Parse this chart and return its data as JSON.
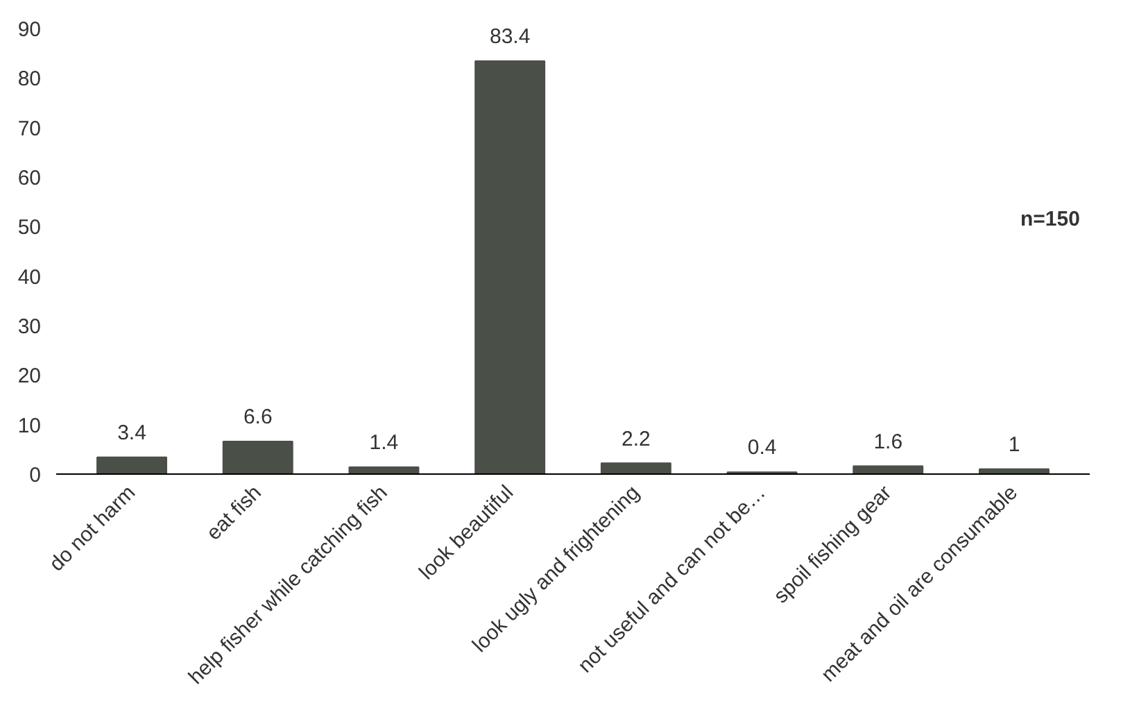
{
  "chart_data": {
    "type": "bar",
    "categories": [
      "do not harm",
      "eat fish",
      "help fisher while catching fish",
      "look beautiful",
      "look ugly and frightening",
      "not useful and can not be…",
      "spoil fishing gear",
      "meat and oil are consumable"
    ],
    "values": [
      3.4,
      6.6,
      1.4,
      83.4,
      2.2,
      0.4,
      1.6,
      1
    ],
    "color": "#4a4f48",
    "ylim": [
      0,
      90
    ],
    "yticks": [
      0,
      10,
      20,
      30,
      40,
      50,
      60,
      70,
      80,
      90
    ],
    "data_labels": true,
    "grid": false,
    "annotations": [
      "n=150"
    ]
  }
}
